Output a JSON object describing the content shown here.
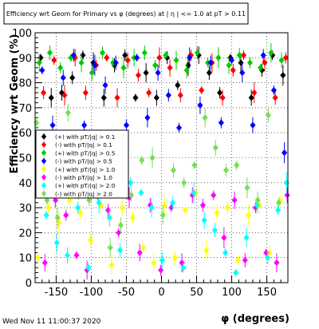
{
  "footer": {
    "timestamp": "Wed Nov 11 11:00:37 2020"
  },
  "chart_data": {
    "type": "scatter",
    "title": "Efficiency wrt Geom for Primary vs φ (degrees) at | η | <= 1.0 at pT > 0.11",
    "xlabel": "φ (degrees)",
    "ylabel": "Efficiency wrt Geom (%)",
    "xlim": [
      -180,
      180
    ],
    "ylim": [
      0,
      100
    ],
    "x_ticks": [
      -150,
      -100,
      -50,
      0,
      50,
      100,
      150
    ],
    "y_ticks": [
      0,
      10,
      20,
      30,
      40,
      50,
      60,
      70,
      80,
      90,
      100
    ],
    "grid": true,
    "legend_position": "middle-left",
    "series": [
      {
        "name": "(+) with pT/|q| > 0.1",
        "color": "#000000",
        "marker": "circle",
        "x": [
          -172,
          -157,
          -142,
          -127,
          -112,
          -97,
          -82,
          -67,
          -52,
          -37,
          -22,
          -7,
          8,
          23,
          38,
          53,
          68,
          83,
          98,
          113,
          128,
          143,
          158,
          173
        ],
        "y": [
          90,
          74,
          76,
          82,
          91,
          88,
          74,
          87,
          91,
          74,
          84,
          74,
          90,
          79,
          87,
          91,
          84,
          76,
          90,
          88,
          74,
          85,
          91,
          83
        ]
      },
      {
        "name": "(-) with pT/|q| > 0.1",
        "color": "#ff0000",
        "marker": "circle",
        "x": [
          -168,
          -153,
          -138,
          -123,
          -108,
          -93,
          -78,
          -63,
          -48,
          -33,
          -18,
          -3,
          12,
          27,
          42,
          57,
          72,
          87,
          102,
          117,
          132,
          147,
          162,
          177
        ],
        "y": [
          76,
          89,
          75,
          90,
          76,
          87,
          90,
          74,
          89,
          83,
          76,
          90,
          86,
          75,
          91,
          77,
          88,
          74,
          85,
          91,
          76,
          88,
          74,
          90
        ]
      },
      {
        "name": "(+) with pT/|q| > 0.5",
        "color": "#00cc00",
        "marker": "circle",
        "x": [
          -174,
          -159,
          -144,
          -129,
          -114,
          -99,
          -84,
          -69,
          -54,
          -39,
          -24,
          -9,
          6,
          21,
          36,
          51,
          66,
          81,
          96,
          111,
          126,
          141,
          156,
          171
        ],
        "y": [
          88,
          92,
          86,
          90,
          88,
          84,
          92,
          88,
          86,
          90,
          92,
          87,
          91,
          89,
          85,
          92,
          88,
          90,
          87,
          91,
          88,
          86,
          92,
          89
        ]
      },
      {
        "name": "(-) with pT/|q| > 0.5",
        "color": "#0000ff",
        "marker": "circle",
        "x": [
          -170,
          -155,
          -140,
          -125,
          -110,
          -95,
          -80,
          -65,
          -50,
          -35,
          -20,
          -5,
          10,
          25,
          40,
          55,
          70,
          85,
          100,
          115,
          130,
          145,
          160,
          175
        ],
        "y": [
          85,
          63,
          82,
          91,
          63,
          87,
          79,
          88,
          63,
          90,
          66,
          84,
          75,
          62,
          90,
          71,
          88,
          64,
          89,
          84,
          63,
          91,
          77,
          52
        ]
      },
      {
        "name": "(+) with pT/|q| > 1.0",
        "color": "#ffff00",
        "marker": "circle",
        "x": [
          -176,
          -161,
          -146,
          -131,
          -116,
          -101,
          -86,
          -71,
          -56,
          -41,
          -26,
          -11,
          4,
          19,
          34,
          49,
          64,
          79,
          94,
          109,
          124,
          139,
          154,
          169
        ],
        "y": [
          10,
          30,
          24,
          33,
          28,
          17,
          31,
          7,
          30,
          26,
          14,
          8,
          31,
          10,
          29,
          36,
          13,
          28,
          30,
          9,
          27,
          31,
          12,
          33
        ]
      },
      {
        "name": "(-) with pT/|q| > 1.0",
        "color": "#ff00ff",
        "marker": "circle",
        "x": [
          -166,
          -151,
          -136,
          -121,
          -106,
          -91,
          -76,
          -61,
          -46,
          -31,
          -16,
          -1,
          14,
          29,
          44,
          59,
          74,
          89,
          104,
          119,
          134,
          149,
          164,
          179
        ],
        "y": [
          8,
          33,
          27,
          11,
          5,
          36,
          29,
          20,
          34,
          12,
          31,
          5,
          30,
          8,
          35,
          31,
          35,
          18,
          33,
          9,
          30,
          12,
          8,
          35
        ]
      },
      {
        "name": "(+) with pT/|q| > 2.0",
        "color": "#00ffff",
        "marker": "circle",
        "x": [
          -164,
          -149,
          -134,
          -119,
          -104,
          -89,
          -74,
          -59,
          -44,
          -29,
          -14,
          1,
          16,
          31,
          46,
          61,
          76,
          91,
          106,
          121,
          136,
          151,
          166,
          178
        ],
        "y": [
          27,
          16,
          11,
          30,
          6,
          32,
          26,
          13,
          40,
          36,
          30,
          9,
          32,
          6,
          36,
          25,
          21,
          12,
          4,
          18,
          31,
          10,
          29,
          40
        ]
      },
      {
        "name": "(-) with pT/|q| > 2.0",
        "color": "#77dd55",
        "marker": "circle",
        "x": [
          -178,
          -163,
          -148,
          -133,
          -118,
          -103,
          -88,
          -73,
          -58,
          -43,
          -28,
          -13,
          2,
          17,
          32,
          47,
          62,
          77,
          92,
          107,
          122,
          137,
          152,
          167
        ],
        "y": [
          64,
          33,
          26,
          68,
          36,
          33,
          57,
          14,
          23,
          35,
          49,
          50,
          27,
          45,
          40,
          47,
          66,
          54,
          45,
          47,
          38,
          33,
          67,
          32
        ]
      }
    ]
  }
}
